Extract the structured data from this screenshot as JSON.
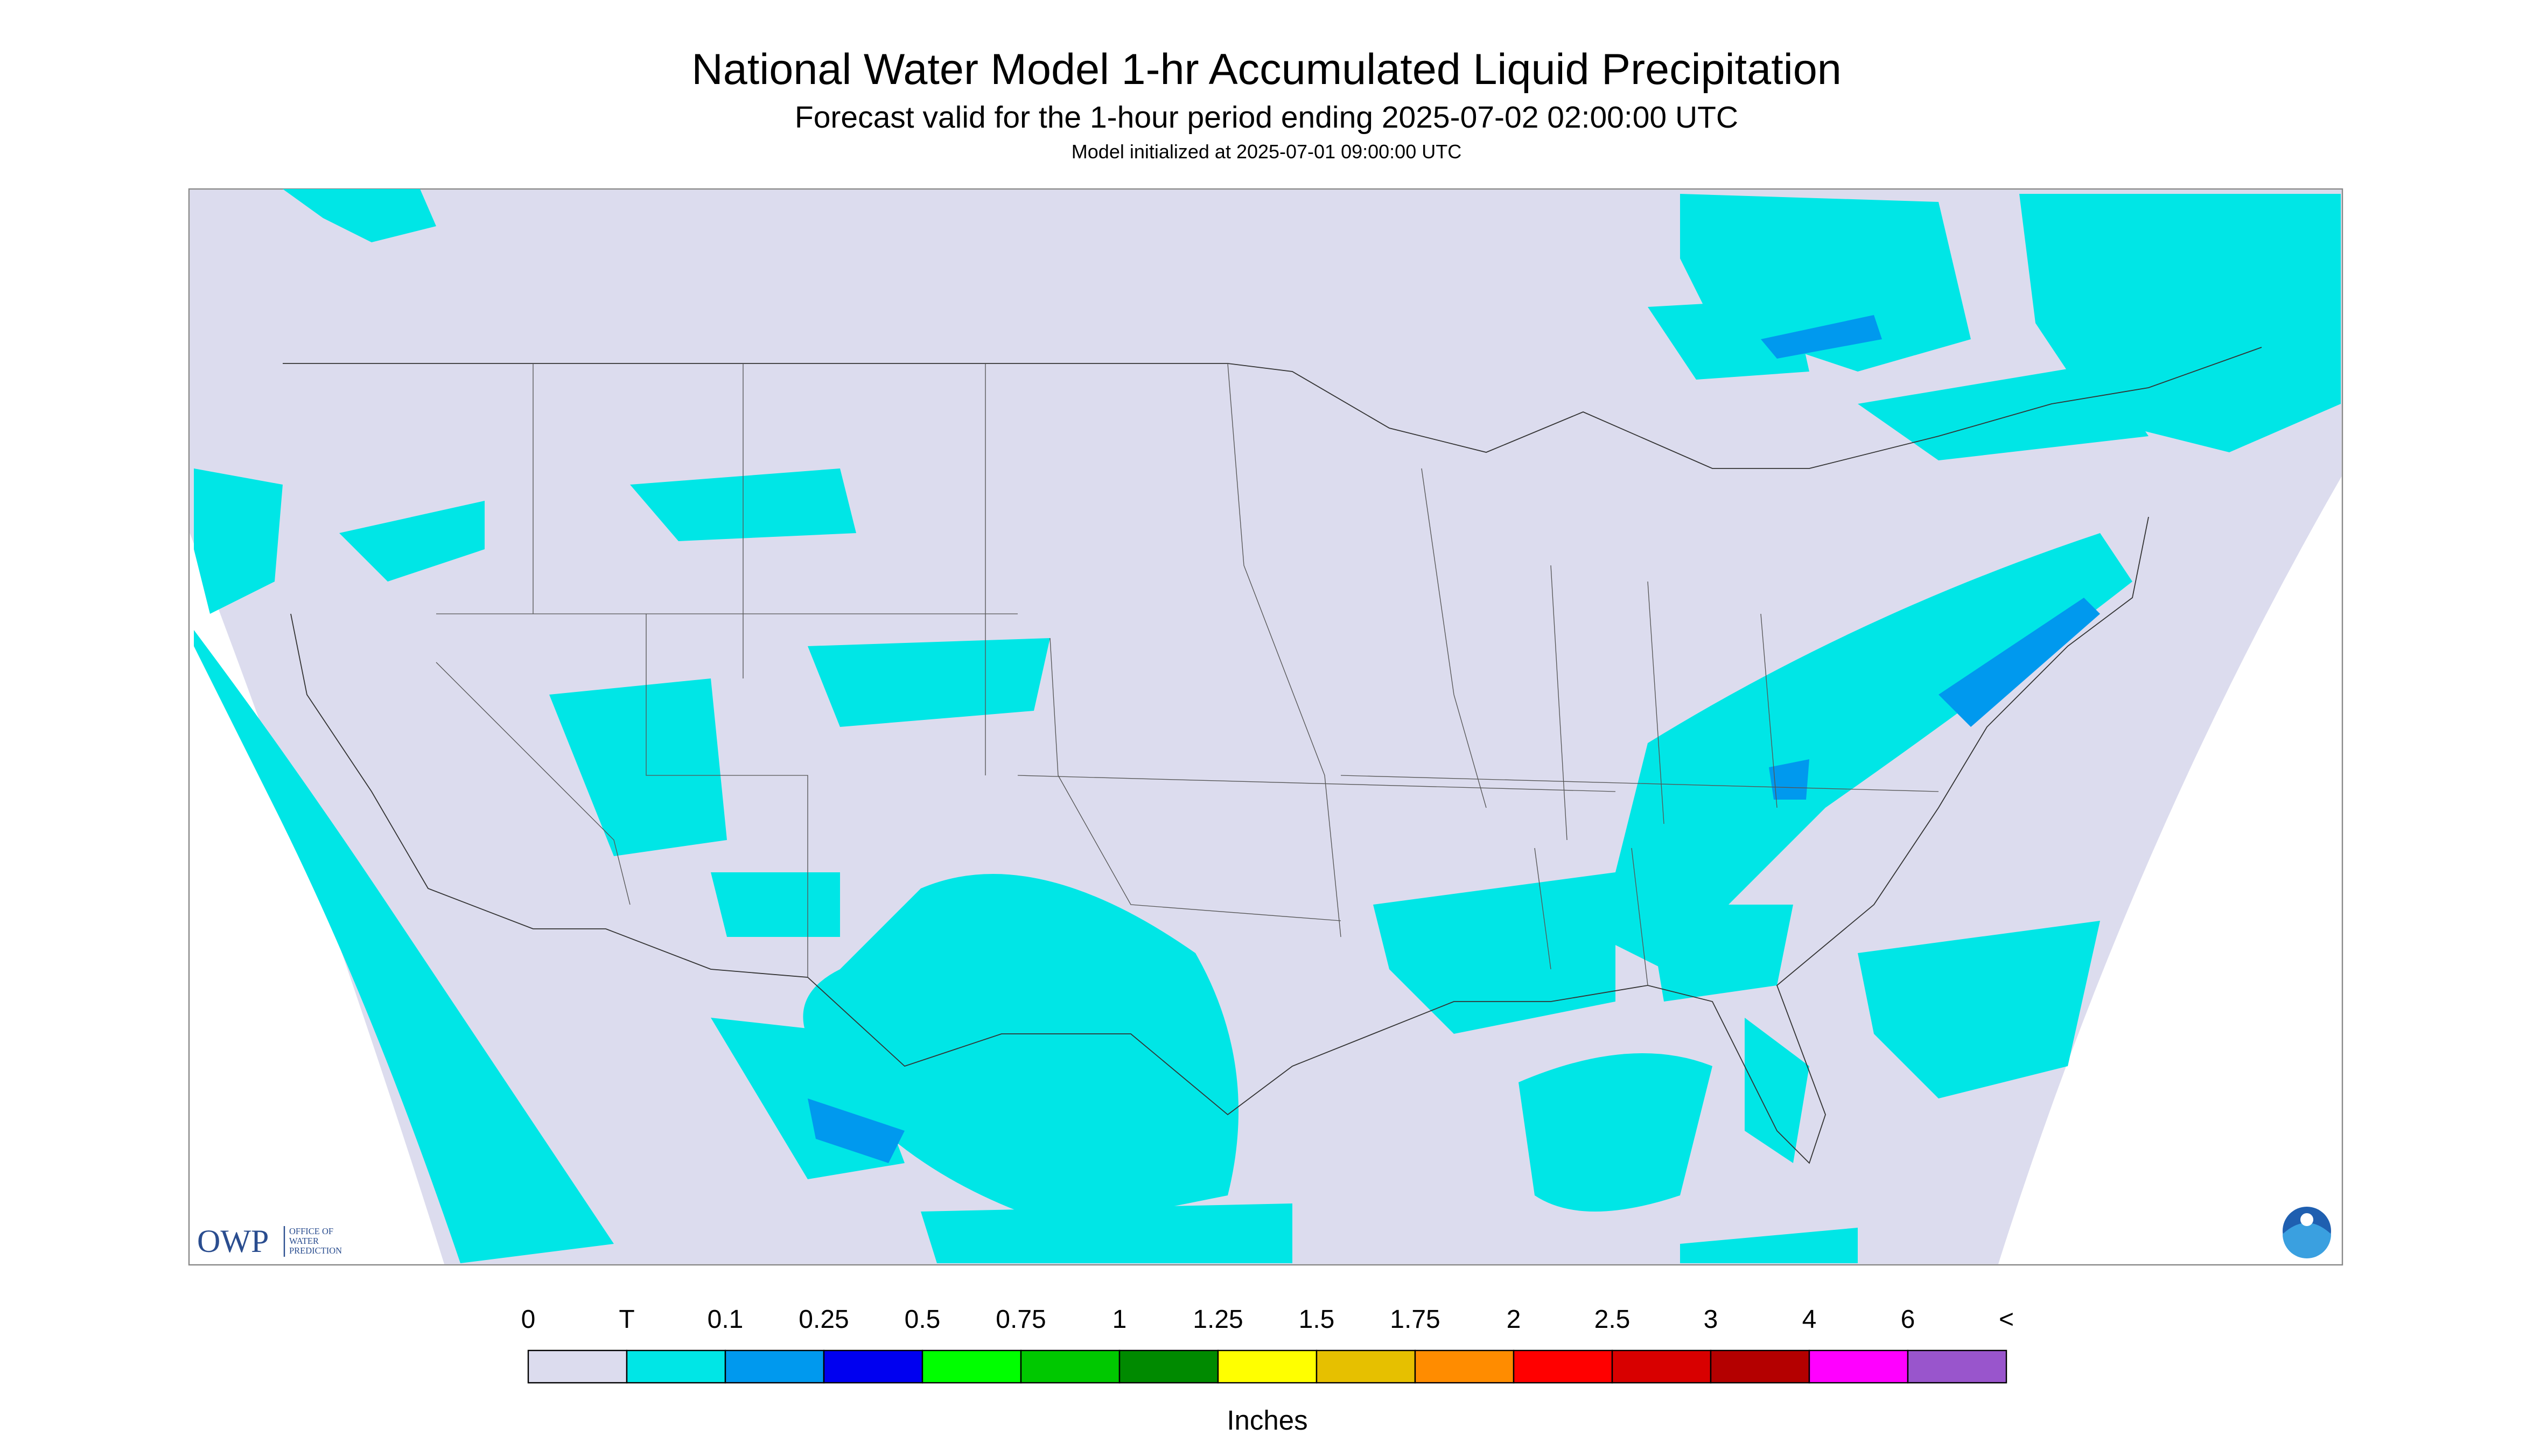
{
  "header": {
    "title": "National Water Model 1-hr Accumulated Liquid Precipitation",
    "subtitle": "Forecast valid for the 1-hour period ending 2025-07-02 02:00:00 UTC",
    "init": "Model initialized at 2025-07-01 09:00:00 UTC"
  },
  "legend": {
    "labels": [
      "0",
      "T",
      "0.1",
      "0.25",
      "0.5",
      "0.75",
      "1",
      "1.25",
      "1.5",
      "1.75",
      "2",
      "2.5",
      "3",
      "4",
      "6",
      "<"
    ],
    "colors": [
      "#dcdcee",
      "#00e6e6",
      "#0099ee",
      "#0000f0",
      "#00ff00",
      "#00c800",
      "#008a00",
      "#ffff00",
      "#e6c000",
      "#ff8c00",
      "#ff0000",
      "#d80000",
      "#b40000",
      "#ff00ff",
      "#9955cc"
    ],
    "unit": "Inches"
  },
  "logos": {
    "owp": "OWP",
    "owp_name": [
      "OFFICE OF",
      "WATER",
      "PREDICTION"
    ]
  }
}
